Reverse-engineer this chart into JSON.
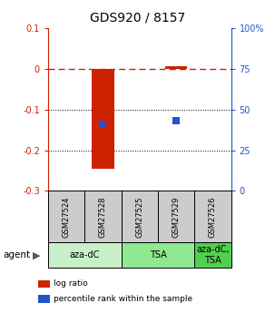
{
  "title": "GDS920 / 8157",
  "samples": [
    "GSM27524",
    "GSM27528",
    "GSM27525",
    "GSM27529",
    "GSM27526"
  ],
  "log_ratios": [
    0.0,
    -0.245,
    0.0,
    0.006,
    0.0
  ],
  "percentile_ranks_pct": [
    null,
    41.0,
    null,
    43.0,
    null
  ],
  "ylim_left": [
    -0.3,
    0.1
  ],
  "ylim_right": [
    0,
    100
  ],
  "yticks_left": [
    0.1,
    0.0,
    -0.1,
    -0.2,
    -0.3
  ],
  "ytick_labels_left": [
    "0.1",
    "0",
    "-0.1",
    "-0.2",
    "-0.3"
  ],
  "yticks_right": [
    100,
    75,
    50,
    25,
    0
  ],
  "ytick_labels_right": [
    "100%",
    "75",
    "50",
    "25",
    "0"
  ],
  "groups": [
    {
      "label": "aza-dC",
      "start": 0,
      "end": 2,
      "color": "#c8f0c8"
    },
    {
      "label": "TSA",
      "start": 2,
      "end": 4,
      "color": "#90e890"
    },
    {
      "label": "aza-dC,\nTSA",
      "start": 4,
      "end": 5,
      "color": "#50d050"
    }
  ],
  "bar_color": "#cc2200",
  "dot_color": "#2255cc",
  "dashed_line_color": "#cc2200",
  "grid_color": "#000000",
  "sample_box_color": "#cccccc",
  "legend_items": [
    {
      "color": "#cc2200",
      "label": "log ratio"
    },
    {
      "color": "#2255cc",
      "label": "percentile rank within the sample"
    }
  ],
  "bar_width": 0.6,
  "dot_size": 40,
  "left_axis_color": "#cc2200",
  "right_axis_color": "#2255cc"
}
